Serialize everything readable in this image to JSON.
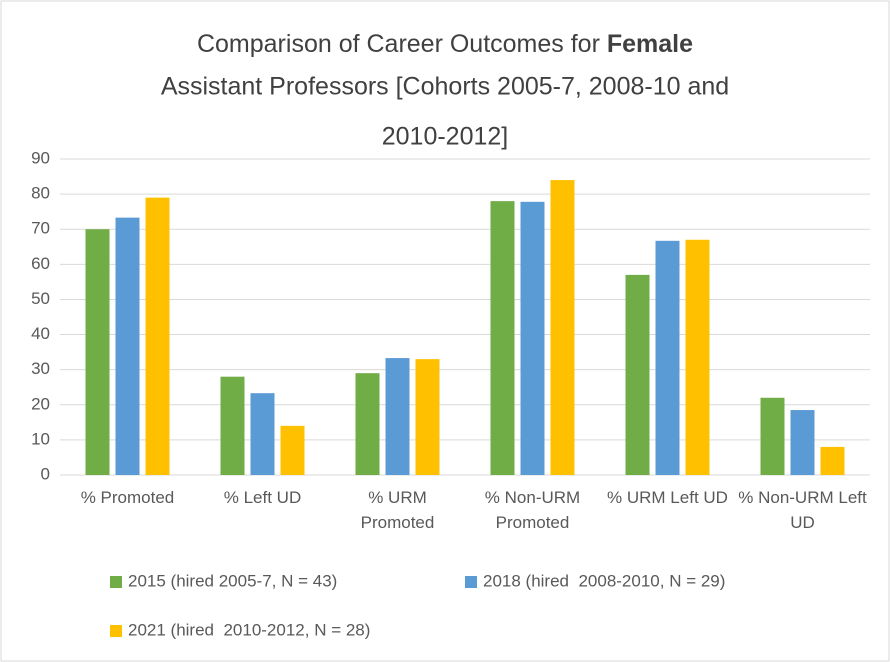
{
  "chart_data": {
    "type": "bar",
    "title": [
      "Comparison of Career Outcomes for",
      "Female",
      "Assistant Professors [Cohorts 2005-7, 2008-10 and",
      "2010-2012]"
    ],
    "categories": [
      "% Promoted",
      "% Left UD",
      "% URM Promoted",
      "% Non-URM Promoted",
      "% URM Left UD",
      "% Non-URM Left UD"
    ],
    "series": [
      {
        "name": "2015 (hired 2005-7, N = 43)",
        "color": "#70ad47",
        "values": [
          70,
          28,
          29,
          78,
          57,
          22
        ]
      },
      {
        "name": "2018 (hired  2008-2010, N = 29)",
        "color": "#5b9bd5",
        "values": [
          73.3,
          23.3,
          33.3,
          77.8,
          66.7,
          18.5
        ]
      },
      {
        "name": "2021 (hired  2010-2012, N = 28)",
        "color": "#ffc000",
        "values": [
          79,
          14,
          33,
          84,
          67,
          8
        ]
      }
    ],
    "ylim": [
      0,
      90
    ],
    "yticks": [
      0,
      10,
      20,
      30,
      40,
      50,
      60,
      70,
      80,
      90
    ],
    "grid": true,
    "legend": "bottom"
  }
}
